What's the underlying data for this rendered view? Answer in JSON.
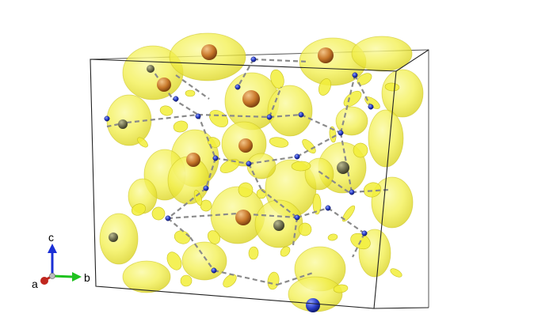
{
  "axes": {
    "a_label": "a",
    "b_label": "b",
    "c_label": "c",
    "a_color": "#c0261e",
    "b_color": "#1fc21f",
    "c_color": "#1a2fd6"
  },
  "colors": {
    "isosurface": "#f2f03c",
    "isosurface_edge": "#c9c21e",
    "cell_edge": "#222222",
    "bond": "#8a8a8a",
    "atom_orange": "#c8782a",
    "atom_blue": "#2a3ec8",
    "atom_gray": "#6f6f50"
  }
}
